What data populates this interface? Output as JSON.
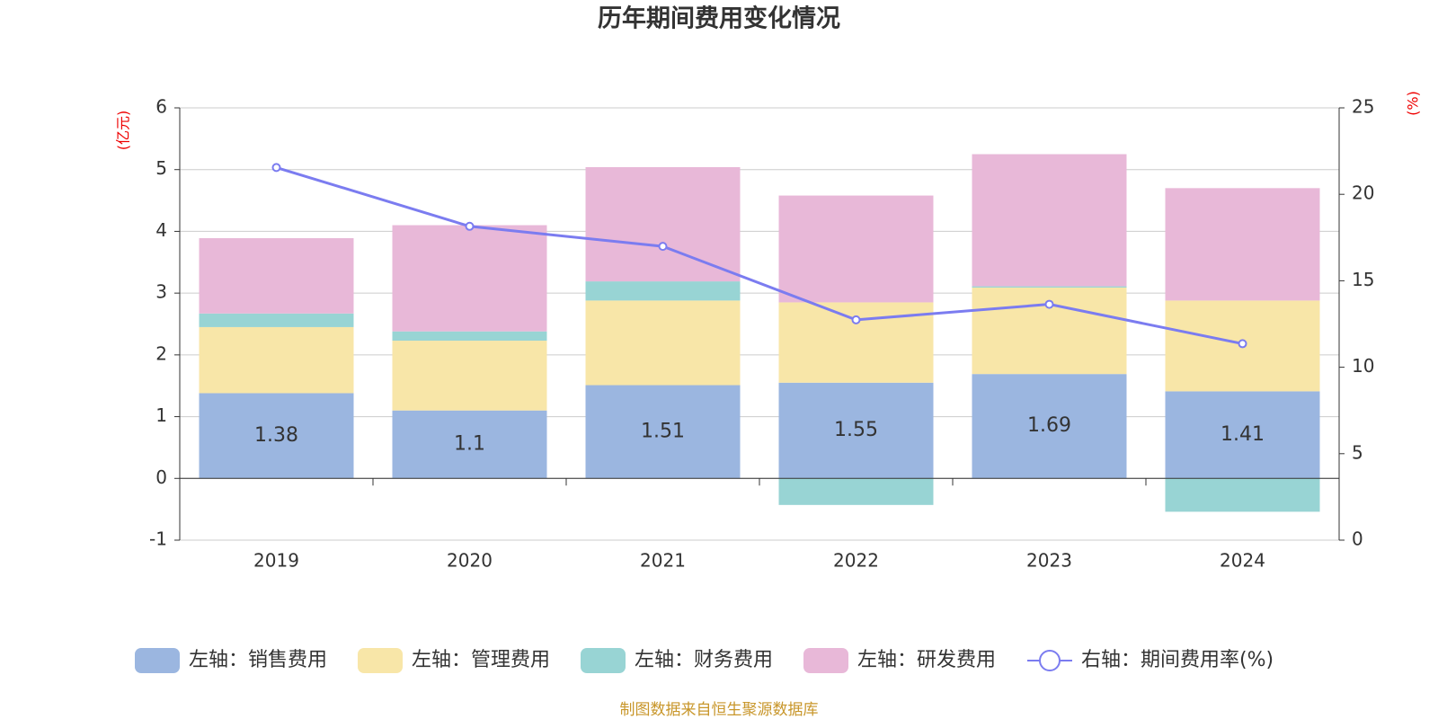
{
  "chart_data": {
    "type": "bar",
    "title": "历年期间费用变化情况",
    "y_label": "(亿元)",
    "y2_label": "(%)",
    "source": "制图数据来自恒生聚源数据库",
    "categories": [
      "2019",
      "2020",
      "2021",
      "2022",
      "2023",
      "2024"
    ],
    "series": [
      {
        "name": "左轴：销售费用",
        "color": "#9bb6e0",
        "values": [
          1.38,
          1.1,
          1.51,
          1.55,
          1.69,
          1.41
        ],
        "show_labels": true
      },
      {
        "name": "左轴：管理费用",
        "color": "#f8e6a8",
        "values": [
          1.07,
          1.13,
          1.37,
          1.3,
          1.4,
          1.47
        ]
      },
      {
        "name": "左轴：财务费用",
        "color": "#98d4d4",
        "values": [
          0.22,
          0.15,
          0.31,
          -0.43,
          0.02,
          -0.54
        ]
      },
      {
        "name": "左轴：研发费用",
        "color": "#e8b8d8",
        "values": [
          1.22,
          1.72,
          1.85,
          1.73,
          2.14,
          1.82
        ]
      },
      {
        "name": "右轴：期间费用率(%)",
        "type": "line",
        "axis": "y2",
        "color": "#7b7cf0",
        "values": [
          21.55,
          18.15,
          16.99,
          12.74,
          13.64,
          11.36
        ]
      }
    ],
    "ylim": [
      -1,
      6
    ],
    "yticks": [
      -1,
      0,
      1,
      2,
      3,
      4,
      5,
      6
    ],
    "y2lim": [
      0,
      25
    ],
    "y2ticks": [
      0,
      5,
      10,
      15,
      20,
      25
    ],
    "grid": true
  }
}
